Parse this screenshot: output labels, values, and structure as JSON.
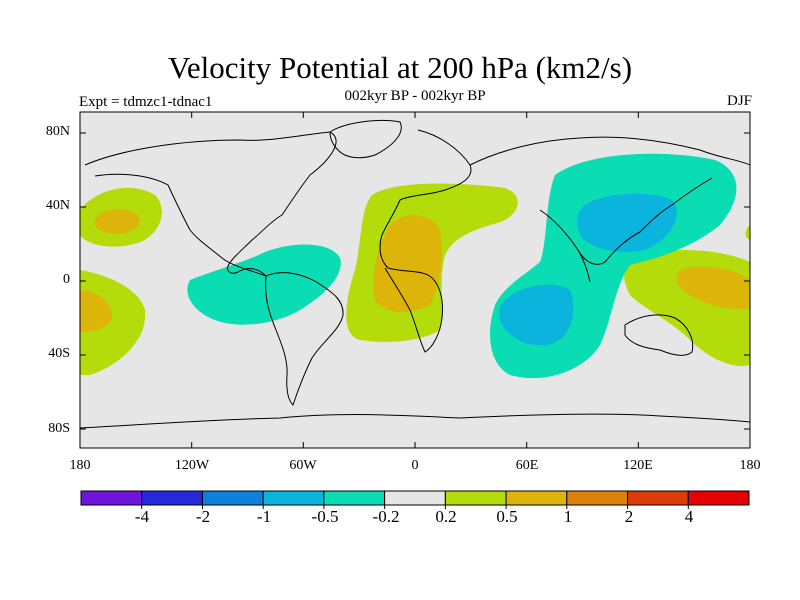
{
  "title": "Velocity Potential at 200 hPa (km2/s)",
  "subtitle": "002kyr BP - 002kyr BP",
  "left_string": "Expt = tdmzc1-tdnac1",
  "right_string": "DJF",
  "axes": {
    "lat_labels": [
      "80N",
      "40N",
      "0",
      "40S",
      "80S"
    ],
    "lon_labels": [
      "180",
      "120W",
      "60W",
      "0",
      "60E",
      "120E",
      "180"
    ]
  },
  "colorbar": {
    "colors": [
      "#6e14dc",
      "#2828dc",
      "#0a82dc",
      "#0ab4dc",
      "#0adcb4",
      "#e6e6e6",
      "#b4dc0a",
      "#dcb40a",
      "#dc820a",
      "#dc3c0a",
      "#e60000"
    ],
    "labels": [
      "-4",
      "-2",
      "-1",
      "-0.5",
      "-0.2",
      "0.2",
      "0.5",
      "1",
      "2",
      "4"
    ]
  },
  "map_colors": {
    "ocean_background": "#e6e6e6",
    "coast": "#000000"
  }
}
